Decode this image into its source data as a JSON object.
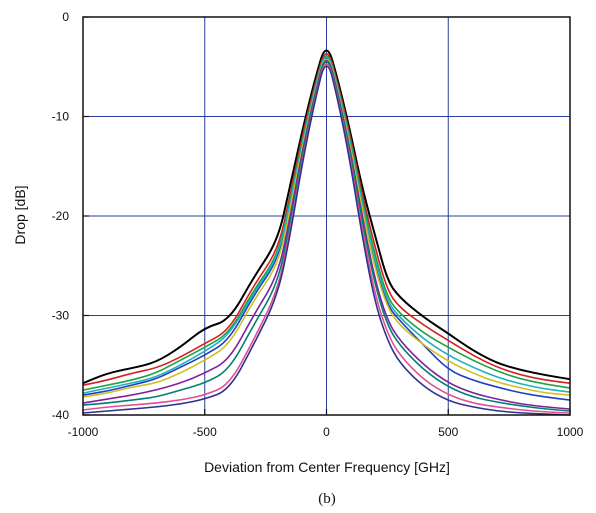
{
  "chart_data": {
    "type": "line",
    "title": "",
    "xlabel": "Deviation from Center Frequency [GHz]",
    "ylabel": "Drop [dB]",
    "caption": "(b)",
    "xlim": [
      -1000,
      1000
    ],
    "ylim": [
      -40,
      0
    ],
    "x_ticks": [
      "-1000",
      "-500",
      "0",
      "500",
      "1000"
    ],
    "y_ticks": [
      "0",
      "-10",
      "-20",
      "-30",
      "-40"
    ],
    "x_tick_values": [
      -1000,
      -500,
      0,
      500,
      1000
    ],
    "y_tick_values": [
      0,
      -10,
      -20,
      -30,
      -40
    ],
    "grid": true,
    "x": [
      -1000,
      -900,
      -800,
      -700,
      -600,
      -500,
      -400,
      -300,
      -200,
      -150,
      -100,
      -50,
      0,
      50,
      100,
      150,
      200,
      250,
      300,
      400,
      500,
      600,
      700,
      800,
      900,
      1000
    ],
    "series": [
      {
        "color": "#000000",
        "values": [
          -36.8,
          -35.8,
          -35.3,
          -34.7,
          -33.2,
          -31.2,
          -30.5,
          -26.2,
          -22.5,
          -17.0,
          -11.5,
          -6.5,
          -2.3,
          -6.6,
          -11.8,
          -17.5,
          -22.0,
          -26.5,
          -28.2,
          -30.2,
          -31.8,
          -33.5,
          -34.8,
          -35.5,
          -36.0,
          -36.4
        ]
      },
      {
        "color": "#d62020",
        "values": [
          -37.0,
          -36.5,
          -35.8,
          -35.3,
          -34.2,
          -32.8,
          -31.5,
          -27.0,
          -23.5,
          -18.0,
          -12.0,
          -7.0,
          -2.6,
          -7.0,
          -12.2,
          -18.2,
          -23.2,
          -27.5,
          -29.2,
          -31.0,
          -32.5,
          -34.0,
          -35.2,
          -36.0,
          -36.5,
          -36.8
        ]
      },
      {
        "color": "#20a040",
        "values": [
          -37.5,
          -37.0,
          -36.5,
          -35.8,
          -34.5,
          -33.2,
          -31.8,
          -27.5,
          -24.0,
          -18.5,
          -12.5,
          -7.3,
          -2.8,
          -7.3,
          -12.6,
          -18.8,
          -24.0,
          -28.2,
          -29.8,
          -31.8,
          -33.2,
          -34.5,
          -35.6,
          -36.4,
          -36.9,
          -37.3
        ]
      },
      {
        "color": "#2040c0",
        "values": [
          -38.0,
          -37.6,
          -37.0,
          -36.4,
          -35.2,
          -34.0,
          -32.5,
          -28.0,
          -24.5,
          -19.0,
          -13.0,
          -7.6,
          -3.0,
          -7.6,
          -13.0,
          -19.5,
          -25.0,
          -29.0,
          -30.5,
          -33.0,
          -35.5,
          -36.5,
          -37.2,
          -37.8,
          -38.2,
          -38.5
        ]
      },
      {
        "color": "#20b0c0",
        "values": [
          -37.8,
          -37.3,
          -36.8,
          -36.2,
          -35.0,
          -33.6,
          -32.0,
          -27.8,
          -24.2,
          -18.8,
          -12.8,
          -7.5,
          -2.9,
          -7.5,
          -12.9,
          -19.2,
          -24.6,
          -28.6,
          -30.2,
          -32.4,
          -34.0,
          -35.2,
          -36.2,
          -36.9,
          -37.4,
          -37.7
        ]
      },
      {
        "color": "#d0c020",
        "values": [
          -38.2,
          -37.8,
          -37.2,
          -36.8,
          -35.8,
          -34.5,
          -33.0,
          -28.5,
          -25.0,
          -19.5,
          -13.2,
          -7.8,
          -3.1,
          -7.8,
          -13.3,
          -19.8,
          -25.4,
          -29.2,
          -31.0,
          -33.0,
          -34.6,
          -35.8,
          -36.7,
          -37.3,
          -37.8,
          -38.0
        ]
      },
      {
        "color": "#8020a0",
        "values": [
          -38.8,
          -38.4,
          -38.0,
          -37.5,
          -36.8,
          -35.8,
          -34.5,
          -30.0,
          -26.0,
          -20.2,
          -13.6,
          -8.0,
          -3.2,
          -8.0,
          -13.7,
          -20.5,
          -26.5,
          -30.5,
          -32.5,
          -35.0,
          -36.8,
          -37.8,
          -38.4,
          -38.9,
          -39.2,
          -39.4
        ]
      },
      {
        "color": "#008070",
        "values": [
          -39.0,
          -38.8,
          -38.5,
          -38.2,
          -37.5,
          -36.8,
          -35.5,
          -31.0,
          -26.8,
          -20.8,
          -14.0,
          -8.2,
          -3.3,
          -8.2,
          -14.0,
          -21.0,
          -27.0,
          -31.0,
          -33.0,
          -35.5,
          -37.2,
          -38.2,
          -38.7,
          -39.1,
          -39.4,
          -39.6
        ]
      },
      {
        "color": "#e05090",
        "values": [
          -39.5,
          -39.2,
          -39.0,
          -38.8,
          -38.5,
          -38.0,
          -37.0,
          -32.5,
          -27.5,
          -21.5,
          -14.5,
          -8.5,
          -3.5,
          -8.5,
          -14.6,
          -21.8,
          -28.0,
          -31.8,
          -34.0,
          -36.5,
          -38.0,
          -38.8,
          -39.2,
          -39.5,
          -39.7,
          -39.8
        ]
      },
      {
        "color": "#303090",
        "values": [
          -39.8,
          -39.6,
          -39.4,
          -39.2,
          -38.9,
          -38.4,
          -37.5,
          -33.0,
          -28.0,
          -22.0,
          -14.8,
          -8.7,
          -3.7,
          -8.7,
          -15.0,
          -22.5,
          -28.8,
          -32.5,
          -34.8,
          -37.2,
          -38.6,
          -39.2,
          -39.6,
          -39.8,
          -39.9,
          -40.0
        ]
      }
    ]
  }
}
